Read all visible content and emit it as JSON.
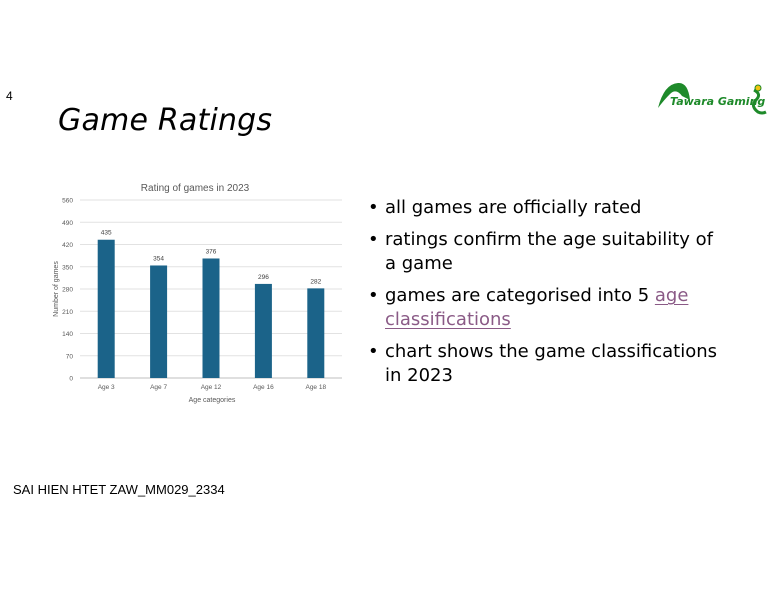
{
  "slide": {
    "number": "4",
    "title": "Game Ratings",
    "logo_text": "Tawara Gaming",
    "author": "SAI HIEN HTET ZAW_MM029_2334"
  },
  "bullets": [
    {
      "text": "all games are officially rated",
      "link": ""
    },
    {
      "text": "ratings confirm the age suitability of a game",
      "link": ""
    },
    {
      "text": "games are categorised into 5 ",
      "link": "age classifications"
    },
    {
      "text": "chart shows the game classifications in 2023",
      "link": ""
    }
  ],
  "colors": {
    "bar": "#1b6389",
    "link": "#8a5a86",
    "logo": "#1e8a2a"
  },
  "chart_data": {
    "type": "bar",
    "title": "Rating of games in 2023",
    "xlabel": "Age categories",
    "ylabel": "Number of games",
    "categories": [
      "Age 3",
      "Age 7",
      "Age 12",
      "Age 16",
      "Age 18"
    ],
    "values": [
      435,
      354,
      376,
      296,
      282
    ],
    "ylim": [
      0,
      560
    ],
    "yticks": [
      0,
      70,
      140,
      210,
      280,
      350,
      420,
      490,
      560
    ],
    "grid": true,
    "data_labels": true
  }
}
